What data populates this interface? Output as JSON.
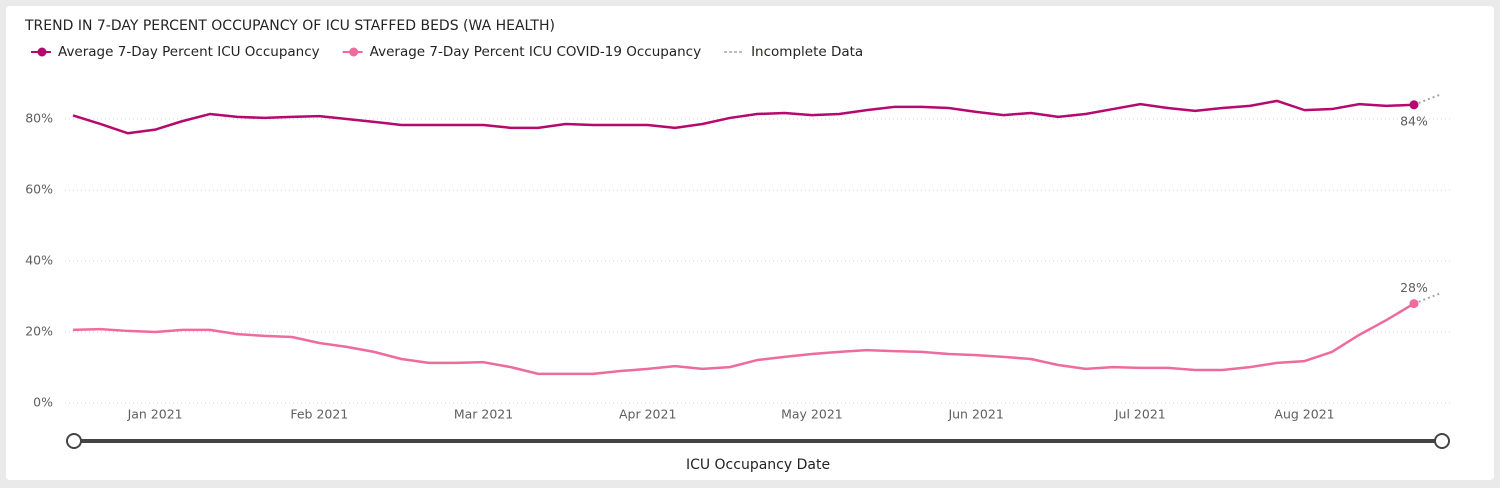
{
  "chart_data": {
    "type": "line",
    "title": "TREND IN 7-DAY PERCENT OCCUPANCY OF ICU STAFFED BEDS (WA HEALTH)",
    "x_label": "ICU Occupancy Date",
    "categories": [
      null,
      null,
      null,
      "Jan 2021",
      null,
      null,
      null,
      null,
      null,
      "Feb 2021",
      null,
      null,
      null,
      null,
      null,
      "Mar 2021",
      null,
      null,
      null,
      null,
      null,
      "Apr 2021",
      null,
      null,
      null,
      null,
      null,
      "May 2021",
      null,
      null,
      null,
      null,
      null,
      "Jun 2021",
      null,
      null,
      null,
      null,
      null,
      "Jul 2021",
      null,
      null,
      null,
      null,
      null,
      "Aug 2021",
      null,
      null,
      null,
      null,
      null
    ],
    "series": [
      {
        "name": "Average 7-Day Percent ICU Occupancy",
        "color": "#b5096e",
        "values": [
          81,
          78.6,
          76,
          77,
          79.4,
          81.4,
          80.6,
          80.3,
          80.6,
          80.8,
          80,
          79.2,
          78.3,
          78.3,
          78.3,
          78.3,
          77.5,
          77.5,
          78.6,
          78.3,
          78.3,
          78.3,
          77.5,
          78.6,
          80.3,
          81.4,
          81.7,
          81.1,
          81.4,
          82.5,
          83.4,
          83.4,
          83.1,
          82,
          81.1,
          81.7,
          80.6,
          81.4,
          82.8,
          84.2,
          83.1,
          82.3,
          83.1,
          83.7,
          85.1,
          82.5,
          82.8,
          84.2,
          83.7,
          84,
          null
        ],
        "value_labels": [
          null,
          null,
          null,
          null,
          null,
          null,
          null,
          null,
          null,
          null,
          null,
          null,
          null,
          null,
          null,
          null,
          null,
          null,
          null,
          null,
          null,
          null,
          null,
          null,
          null,
          null,
          null,
          null,
          null,
          null,
          null,
          null,
          null,
          null,
          null,
          null,
          null,
          null,
          null,
          null,
          null,
          null,
          null,
          null,
          null,
          null,
          null,
          null,
          null,
          "84%",
          null
        ],
        "incomplete_end": 87
      },
      {
        "name": "Average 7-Day Percent ICU COVID-19 Occupancy",
        "color": "#ee6b9e",
        "values": [
          20.6,
          20.8,
          20.3,
          20,
          20.6,
          20.6,
          19.4,
          18.9,
          18.6,
          16.9,
          15.8,
          14.4,
          12.4,
          11.3,
          11.3,
          11.5,
          10.1,
          8.2,
          8.2,
          8.2,
          9,
          9.6,
          10.4,
          9.6,
          10.1,
          12.1,
          13,
          13.8,
          14.4,
          14.9,
          14.6,
          14.4,
          13.8,
          13.5,
          13,
          12.4,
          10.7,
          9.6,
          10.1,
          9.9,
          9.9,
          9.3,
          9.3,
          10.1,
          11.3,
          11.8,
          14.4,
          19.2,
          23.4,
          28,
          null
        ],
        "value_labels": [
          null,
          null,
          null,
          null,
          null,
          null,
          null,
          null,
          null,
          null,
          null,
          null,
          null,
          null,
          null,
          null,
          null,
          null,
          null,
          null,
          null,
          null,
          null,
          null,
          null,
          null,
          null,
          null,
          null,
          null,
          null,
          null,
          null,
          null,
          null,
          null,
          null,
          null,
          null,
          null,
          null,
          null,
          null,
          null,
          null,
          null,
          null,
          null,
          null,
          "28%",
          null
        ],
        "incomplete_end": 31
      }
    ],
    "incomplete": {
      "name": "Incomplete Data",
      "color": "#a6a6a6"
    },
    "ylim": [
      0,
      90
    ],
    "yticks": [
      {
        "value": 0,
        "label": "0%"
      },
      {
        "value": 20,
        "label": "20%"
      },
      {
        "value": 40,
        "label": "40%"
      },
      {
        "value": 60,
        "label": "60%"
      },
      {
        "value": 80,
        "label": "80%"
      }
    ],
    "grid": true,
    "legend": "top-left"
  }
}
